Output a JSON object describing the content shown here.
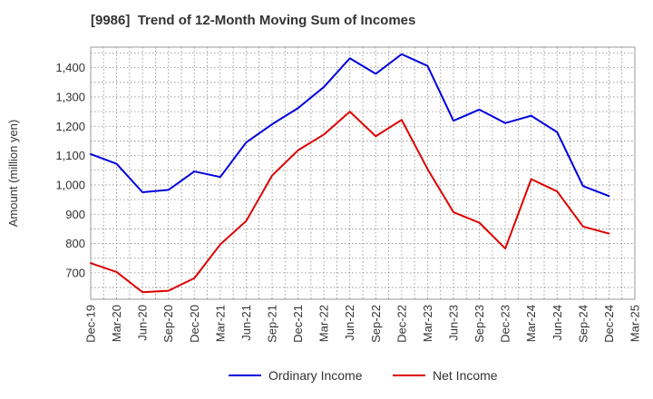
{
  "chart_data": {
    "type": "line",
    "title": "[9986]  Trend of 12-Month Moving Sum of Incomes",
    "xlabel": "",
    "ylabel": "Amount (million yen)",
    "ylim": [
      610,
      1470
    ],
    "yticks": [
      700,
      800,
      900,
      1000,
      1100,
      1200,
      1300,
      1400
    ],
    "ytick_labels": [
      "700",
      "800",
      "900",
      "1,000",
      "1,100",
      "1,200",
      "1,300",
      "1,400"
    ],
    "categories": [
      "Dec-19",
      "Mar-20",
      "Jun-20",
      "Sep-20",
      "Dec-20",
      "Mar-21",
      "Jun-21",
      "Sep-21",
      "Dec-21",
      "Mar-22",
      "Jun-22",
      "Sep-22",
      "Dec-22",
      "Mar-23",
      "Jun-23",
      "Sep-23",
      "Dec-23",
      "Mar-24",
      "Jun-24",
      "Sep-24",
      "Dec-24",
      "Mar-25"
    ],
    "grid": true,
    "legend_position": "bottom",
    "series": [
      {
        "name": "Ordinary Income",
        "color": "#0000dd",
        "values": [
          1105,
          1072,
          975,
          983,
          1046,
          1027,
          1145,
          1207,
          1262,
          1334,
          1432,
          1379,
          1446,
          1406,
          1219,
          1257,
          1211,
          1236,
          1180,
          996,
          962,
          null
        ]
      },
      {
        "name": "Net Income",
        "color": "#dd0000",
        "values": [
          733,
          703,
          634,
          639,
          682,
          797,
          877,
          1032,
          1118,
          1172,
          1250,
          1166,
          1222,
          1054,
          907,
          871,
          783,
          1020,
          978,
          858,
          834,
          null
        ]
      }
    ]
  }
}
